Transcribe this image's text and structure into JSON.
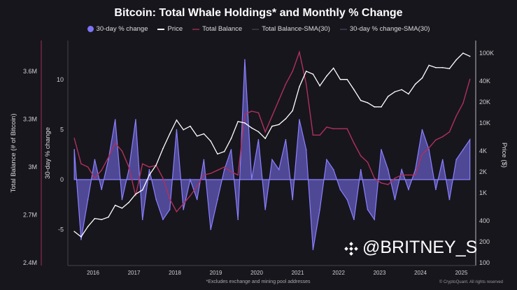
{
  "chart_data": {
    "type": "line",
    "title": "Bitcoin: Total Whale Holdings* and Monthly % Change",
    "footnote": "*Excludes exchange and mining pool addresses",
    "copyright": "© CryptoQuant. All rights reserved",
    "watermark": "@BRITNEY_S",
    "legend": [
      "30-day % change",
      "Price",
      "Total Balance",
      "Total Balance-SMA(30)",
      "30-day % change-SMA(30)"
    ],
    "legend_placement": "top-center",
    "grid": false,
    "colors": {
      "pct_change": "#7d73f5",
      "price": "#ffffff",
      "balance": "#b0305e",
      "balance_sma": "#6a3040",
      "pct_sma": "#5a5a90",
      "background": "#17161d"
    },
    "x_ticks": [
      "2016",
      "2017",
      "2018",
      "2019",
      "2020",
      "2021",
      "2022",
      "2023",
      "2024",
      "2025"
    ],
    "y_left_outer": {
      "label": "Total Balance (# of Bitcoin)",
      "ticks": [
        "3.6M",
        "3.3M",
        "3M",
        "2.7M",
        "2.4M"
      ],
      "tick_values": [
        3.6,
        3.3,
        3.0,
        2.7,
        2.4
      ],
      "range": [
        2.4,
        3.8
      ],
      "unit": "M BTC"
    },
    "y_left_inner": {
      "label": "30-day % change",
      "ticks": [
        "10",
        "5",
        "0",
        "-5"
      ],
      "tick_values": [
        10,
        5,
        0,
        -5
      ],
      "range": [
        -8.6,
        14
      ]
    },
    "y_right": {
      "label": "Price ($)",
      "scale": "log",
      "ticks": [
        "100K",
        "40K",
        "20K",
        "10K",
        "4K",
        "2K",
        "1K",
        "400",
        "200",
        "100"
      ],
      "tick_values": [
        100000,
        40000,
        20000,
        10000,
        4000,
        2000,
        1000,
        400,
        200,
        100
      ]
    },
    "x": [
      "2015-07",
      "2015-09",
      "2015-11",
      "2016-01",
      "2016-03",
      "2016-05",
      "2016-07",
      "2016-09",
      "2016-11",
      "2017-01",
      "2017-03",
      "2017-05",
      "2017-07",
      "2017-09",
      "2017-11",
      "2018-01",
      "2018-03",
      "2018-05",
      "2018-07",
      "2018-09",
      "2018-11",
      "2019-01",
      "2019-03",
      "2019-05",
      "2019-07",
      "2019-09",
      "2019-11",
      "2020-01",
      "2020-03",
      "2020-05",
      "2020-07",
      "2020-09",
      "2020-11",
      "2021-01",
      "2021-03",
      "2021-05",
      "2021-07",
      "2021-09",
      "2021-11",
      "2022-01",
      "2022-03",
      "2022-05",
      "2022-07",
      "2022-09",
      "2022-11",
      "2023-01",
      "2023-03",
      "2023-05",
      "2023-07",
      "2023-09",
      "2023-11",
      "2024-01",
      "2024-03",
      "2024-05",
      "2024-07",
      "2024-09",
      "2024-11",
      "2025-01",
      "2025-03"
    ],
    "series": [
      {
        "name": "30-day % change",
        "axis": "left_inner",
        "values": [
          3,
          -6,
          -2,
          2,
          -1,
          2,
          6,
          -2,
          1,
          6,
          -4,
          1,
          -2,
          -4,
          -3,
          5,
          -3,
          0,
          -2,
          2,
          -5,
          -2,
          1,
          3,
          -4,
          12,
          0,
          4,
          -3,
          2,
          1,
          4,
          -2,
          6,
          3,
          -7,
          -3,
          2,
          1,
          -1,
          -2,
          -4,
          1,
          -3,
          -4,
          3,
          1,
          -2,
          1,
          -1,
          1,
          5,
          3,
          -1,
          2,
          -2,
          2,
          3,
          4
        ]
      },
      {
        "name": "Price",
        "axis": "right",
        "values": [
          280,
          235,
          330,
          430,
          415,
          450,
          665,
          605,
          730,
          960,
          1100,
          1800,
          2500,
          4300,
          7000,
          11000,
          8000,
          9000,
          6500,
          7000,
          5500,
          3600,
          3900,
          6000,
          10500,
          10000,
          8500,
          7500,
          6000,
          9000,
          9500,
          11500,
          15000,
          33000,
          55000,
          50000,
          34000,
          47000,
          61000,
          42000,
          42000,
          30000,
          21000,
          19500,
          17000,
          17000,
          24000,
          28000,
          30000,
          26000,
          36000,
          44000,
          67000,
          62000,
          62000,
          60000,
          80000,
          100000,
          90000
        ]
      },
      {
        "name": "Total Balance",
        "axis": "left_outer",
        "values": [
          3.18,
          3.02,
          3.0,
          2.93,
          2.98,
          3.06,
          3.15,
          3.1,
          3.0,
          2.82,
          3.02,
          3.0,
          3.01,
          2.93,
          2.8,
          2.72,
          2.77,
          2.82,
          2.88,
          2.95,
          2.96,
          2.98,
          3.0,
          2.97,
          2.95,
          3.33,
          3.35,
          3.34,
          3.22,
          3.32,
          3.42,
          3.52,
          3.6,
          3.72,
          3.52,
          3.2,
          3.2,
          3.25,
          3.24,
          3.24,
          3.24,
          3.15,
          3.07,
          3.03,
          2.93,
          2.9,
          2.89,
          2.93,
          2.95,
          2.95,
          2.95,
          3.08,
          3.12,
          3.17,
          3.19,
          3.22,
          3.32,
          3.4,
          3.55
        ]
      }
    ]
  }
}
